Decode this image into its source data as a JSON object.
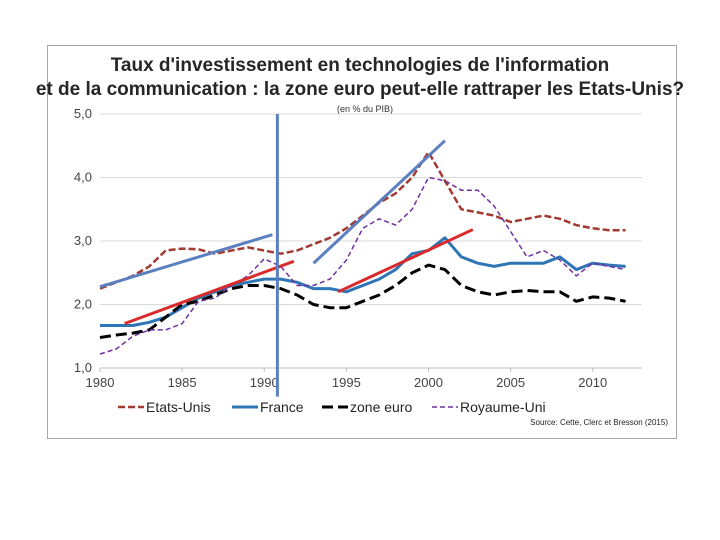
{
  "chart_data": {
    "type": "line",
    "title": "Taux d'investissement en technologies de l'information",
    "title_line2": "et de la communication : la zone euro peut-elle rattraper les Etats-Unis?",
    "subtitle": "(en % du PIB)",
    "source": "Source: Cette, Clerc et Bresson (2015)",
    "xlabel": "",
    "ylabel": "",
    "xlim": [
      1980,
      2013
    ],
    "ylim": [
      1.0,
      5.0
    ],
    "x_ticks": [
      "1980",
      "1985",
      "1990",
      "1995",
      "2000",
      "2005",
      "2010"
    ],
    "y_ticks": [
      "1,0",
      "2,0",
      "3,0",
      "4,0",
      "5,0"
    ],
    "grid": true,
    "legend_position": "bottom",
    "series": [
      {
        "name": "Etats-Unis",
        "color": "#a33a32",
        "style": "dashed",
        "x": [
          1980,
          1981,
          1982,
          1983,
          1984,
          1985,
          1986,
          1987,
          1988,
          1989,
          1990,
          1991,
          1992,
          1993,
          1994,
          1995,
          1996,
          1997,
          1998,
          1999,
          2000,
          2001,
          2002,
          2003,
          2004,
          2005,
          2006,
          2007,
          2008,
          2009,
          2010,
          2011,
          2012
        ],
        "values": [
          2.25,
          2.35,
          2.45,
          2.6,
          2.85,
          2.88,
          2.87,
          2.8,
          2.85,
          2.9,
          2.85,
          2.8,
          2.85,
          2.95,
          3.05,
          3.2,
          3.4,
          3.6,
          3.75,
          4.0,
          4.4,
          3.95,
          3.5,
          3.45,
          3.4,
          3.3,
          3.35,
          3.4,
          3.35,
          3.25,
          3.2,
          3.17,
          3.17
        ]
      },
      {
        "name": "France",
        "color": "#2e75b6",
        "style": "solid",
        "x": [
          1980,
          1981,
          1982,
          1983,
          1984,
          1985,
          1986,
          1987,
          1988,
          1989,
          1990,
          1991,
          1992,
          1993,
          1994,
          1995,
          1996,
          1997,
          1998,
          1999,
          2000,
          2001,
          2002,
          2003,
          2004,
          2005,
          2006,
          2007,
          2008,
          2009,
          2010,
          2011,
          2012
        ],
        "values": [
          1.67,
          1.67,
          1.67,
          1.72,
          1.8,
          1.95,
          2.1,
          2.2,
          2.3,
          2.35,
          2.4,
          2.4,
          2.35,
          2.25,
          2.25,
          2.2,
          2.3,
          2.4,
          2.55,
          2.8,
          2.85,
          3.05,
          2.75,
          2.65,
          2.6,
          2.65,
          2.65,
          2.65,
          2.75,
          2.55,
          2.65,
          2.62,
          2.6
        ]
      },
      {
        "name": "zone euro",
        "color": "#000000",
        "style": "dashed-bold",
        "x": [
          1980,
          1981,
          1982,
          1983,
          1984,
          1985,
          1986,
          1987,
          1988,
          1989,
          1990,
          1991,
          1992,
          1993,
          1994,
          1995,
          1996,
          1997,
          1998,
          1999,
          2000,
          2001,
          2002,
          2003,
          2004,
          2005,
          2006,
          2007,
          2008,
          2009,
          2010,
          2011,
          2012
        ],
        "values": [
          1.48,
          1.52,
          1.55,
          1.6,
          1.8,
          2.0,
          2.05,
          2.15,
          2.25,
          2.3,
          2.3,
          2.25,
          2.15,
          2.0,
          1.95,
          1.95,
          2.05,
          2.15,
          2.3,
          2.5,
          2.62,
          2.55,
          2.3,
          2.2,
          2.15,
          2.2,
          2.22,
          2.2,
          2.2,
          2.05,
          2.12,
          2.1,
          2.05
        ]
      },
      {
        "name": "Royaume-Uni",
        "color": "#7030a0",
        "style": "dashed-thin",
        "x": [
          1980,
          1981,
          1982,
          1983,
          1984,
          1985,
          1986,
          1987,
          1988,
          1989,
          1990,
          1991,
          1992,
          1993,
          1994,
          1995,
          1996,
          1997,
          1998,
          1999,
          2000,
          2001,
          2002,
          2003,
          2004,
          2005,
          2006,
          2007,
          2008,
          2009,
          2010,
          2011,
          2012
        ],
        "values": [
          1.22,
          1.3,
          1.5,
          1.6,
          1.6,
          1.7,
          2.05,
          2.1,
          2.3,
          2.45,
          2.72,
          2.6,
          2.3,
          2.3,
          2.4,
          2.7,
          3.2,
          3.35,
          3.25,
          3.5,
          4.0,
          3.95,
          3.8,
          3.8,
          3.55,
          3.15,
          2.75,
          2.85,
          2.7,
          2.45,
          2.65,
          2.6,
          2.55
        ]
      }
    ],
    "annotations": [
      {
        "name": "trend-us-1",
        "color": "#5b7fbf",
        "x": [
          1980,
          1990.5
        ],
        "values": [
          2.28,
          3.1
        ]
      },
      {
        "name": "trend-us-2",
        "color": "#5b7fbf",
        "x": [
          1993,
          2001
        ],
        "values": [
          2.65,
          4.58
        ]
      },
      {
        "name": "trend-euro-1",
        "color": "#d92b2b",
        "x": [
          1981.5,
          1991.8
        ],
        "values": [
          1.7,
          2.68
        ]
      },
      {
        "name": "trend-euro-2",
        "color": "#d92b2b",
        "x": [
          1994.5,
          2002.7
        ],
        "values": [
          2.2,
          3.18
        ]
      },
      {
        "name": "vertical-marker",
        "color": "#5b7fbf",
        "x": [
          1990.8,
          1990.8
        ],
        "values": [
          5.0,
          0.55
        ]
      }
    ]
  }
}
